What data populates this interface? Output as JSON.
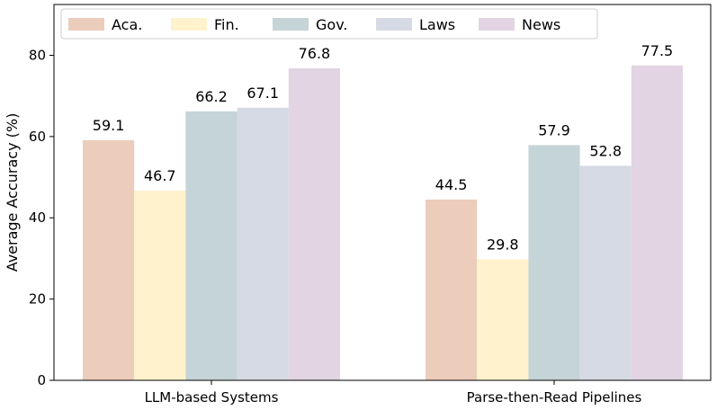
{
  "chart_data": {
    "type": "bar",
    "categories": [
      "LLM-based Systems",
      "Parse-then-Read Pipelines"
    ],
    "series": [
      {
        "name": "Aca.",
        "values": [
          59.1,
          44.5
        ],
        "color": "#ecccbb"
      },
      {
        "name": "Fin.",
        "values": [
          46.7,
          29.8
        ],
        "color": "#fff2cc"
      },
      {
        "name": "Gov.",
        "values": [
          66.2,
          57.9
        ],
        "color": "#c5d4d6"
      },
      {
        "name": "Laws",
        "values": [
          67.1,
          52.8
        ],
        "color": "#d6dae4"
      },
      {
        "name": "News",
        "values": [
          76.8,
          77.5
        ],
        "color": "#e2d4e2"
      }
    ],
    "title": "",
    "xlabel": "",
    "ylabel": "Average Accuracy (%)",
    "ylim": [
      0,
      92.5
    ],
    "yticks": [
      0,
      20,
      40,
      60,
      80
    ],
    "grid": false,
    "legend": {
      "placement": "top",
      "columns": 5
    }
  }
}
